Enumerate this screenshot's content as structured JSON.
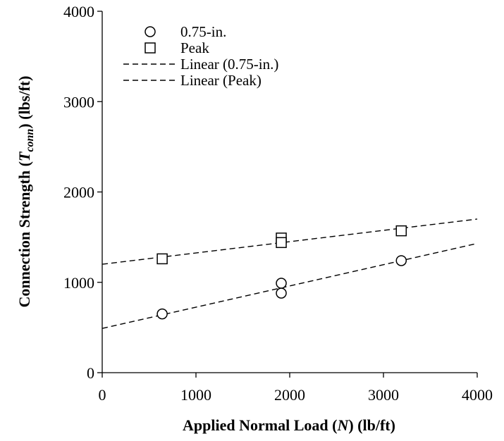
{
  "chart_data": {
    "type": "scatter",
    "xlabel": {
      "prefix": "Applied Normal Load (",
      "symbol": "N",
      "suffix": ") (lb/ft)"
    },
    "ylabel": {
      "prefix": "Connection Strength (",
      "symbol": "T",
      "subscript": "conn",
      "suffix": ") (lbs/ft)"
    },
    "xlim": [
      0,
      4000
    ],
    "ylim": [
      0,
      4000
    ],
    "x_ticks": [
      0,
      1000,
      2000,
      3000,
      4000
    ],
    "y_ticks": [
      0,
      1000,
      2000,
      3000,
      4000
    ],
    "grid": false,
    "legend_position": "top-left",
    "series": [
      {
        "name": "0.75-in.",
        "marker": "circle",
        "points": [
          {
            "x": 640,
            "y": 650
          },
          {
            "x": 1910,
            "y": 990
          },
          {
            "x": 1910,
            "y": 880
          },
          {
            "x": 3190,
            "y": 1240
          }
        ]
      },
      {
        "name": "Peak",
        "marker": "square",
        "points": [
          {
            "x": 640,
            "y": 1260
          },
          {
            "x": 1910,
            "y": 1490
          },
          {
            "x": 1910,
            "y": 1440
          },
          {
            "x": 3190,
            "y": 1570
          }
        ]
      }
    ],
    "trendlines": [
      {
        "name": "Linear (0.75-in.)",
        "style": "dashed",
        "x": [
          0,
          4000
        ],
        "y": [
          490,
          1430
        ]
      },
      {
        "name": "Linear (Peak)",
        "style": "dashed",
        "x": [
          0,
          4000
        ],
        "y": [
          1200,
          1700
        ]
      }
    ]
  }
}
